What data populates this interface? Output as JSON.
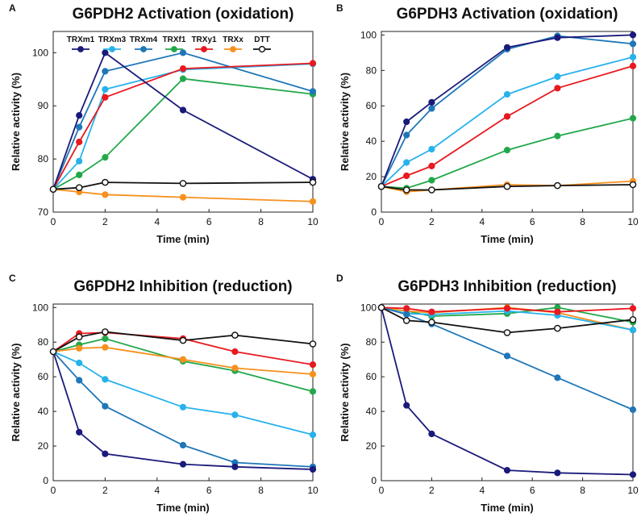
{
  "colors": {
    "TRXm1": "#1a1a7a",
    "TRXm3": "#27b2ec",
    "TRXm4": "#1f77b8",
    "TRXf1": "#22a84a",
    "TRXy1": "#e8191f",
    "TRXx": "#f7901e",
    "DTT": "#111111"
  },
  "legend": [
    "TRXm1",
    "TRXm3",
    "TRXm4",
    "TRXf1",
    "TRXy1",
    "TRXx",
    "DTT"
  ],
  "chart_data": [
    {
      "panel": "A",
      "type": "line",
      "title": "G6PDH2 Activation (oxidation)",
      "xlabel": "Time (min)",
      "ylabel": "Relative activity (%)",
      "xlim": [
        0,
        10
      ],
      "ylim": [
        70,
        104
      ],
      "xticks": [
        0,
        2,
        4,
        6,
        8,
        10
      ],
      "yticks": [
        70,
        80,
        90,
        100
      ],
      "series": [
        {
          "name": "TRXm1",
          "x": [
            0,
            1,
            2,
            5,
            10
          ],
          "values": [
            74.3,
            88.2,
            100,
            89.2,
            76.2
          ]
        },
        {
          "name": "TRXm3",
          "x": [
            0,
            1,
            2,
            5,
            10
          ],
          "values": [
            74.3,
            79.6,
            93.1,
            96.8,
            97.9
          ]
        },
        {
          "name": "TRXm4",
          "x": [
            0,
            1,
            2,
            5,
            10
          ],
          "values": [
            74.3,
            86.0,
            96.5,
            100,
            92.7
          ]
        },
        {
          "name": "TRXf1",
          "x": [
            0,
            1,
            2,
            5,
            10
          ],
          "values": [
            74.3,
            77.0,
            80.3,
            95.1,
            92.2
          ]
        },
        {
          "name": "TRXy1",
          "x": [
            0,
            1,
            2,
            5,
            10
          ],
          "values": [
            74.3,
            83.2,
            91.6,
            97.0,
            98.0
          ]
        },
        {
          "name": "TRXx",
          "x": [
            0,
            1,
            2,
            5,
            10
          ],
          "values": [
            74.3,
            73.8,
            73.3,
            72.8,
            72.0
          ]
        },
        {
          "name": "DTT",
          "x": [
            0,
            1,
            2,
            5,
            10
          ],
          "values": [
            74.3,
            74.6,
            75.6,
            75.4,
            75.6
          ]
        }
      ]
    },
    {
      "panel": "B",
      "type": "line",
      "title": "G6PDH3 Activation (oxidation)",
      "xlabel": "Time (min)",
      "ylabel": "Relative activity (%)",
      "xlim": [
        0,
        10
      ],
      "ylim": [
        0,
        102
      ],
      "xticks": [
        0,
        2,
        4,
        6,
        8,
        10
      ],
      "yticks": [
        0,
        20,
        40,
        60,
        80,
        100
      ],
      "series": [
        {
          "name": "TRXm1",
          "x": [
            0,
            1,
            2,
            5,
            7,
            10
          ],
          "values": [
            14.5,
            51,
            62,
            93,
            98.5,
            100
          ]
        },
        {
          "name": "TRXm3",
          "x": [
            0,
            1,
            2,
            5,
            7,
            10
          ],
          "values": [
            14.5,
            28,
            35.5,
            66.5,
            76.5,
            87.5
          ]
        },
        {
          "name": "TRXm4",
          "x": [
            0,
            1,
            2,
            5,
            7,
            10
          ],
          "values": [
            14.5,
            43.5,
            58.5,
            92,
            99.5,
            95
          ]
        },
        {
          "name": "TRXf1",
          "x": [
            0,
            1,
            2,
            5,
            7,
            10
          ],
          "values": [
            14.5,
            13.5,
            18,
            35,
            43,
            53
          ]
        },
        {
          "name": "TRXy1",
          "x": [
            0,
            1,
            2,
            5,
            7,
            10
          ],
          "values": [
            14.5,
            20.5,
            26,
            54,
            70,
            82.5
          ]
        },
        {
          "name": "TRXx",
          "x": [
            0,
            1,
            2,
            5,
            7,
            10
          ],
          "values": [
            14.5,
            11.5,
            12.5,
            15.5,
            15,
            17.5
          ]
        },
        {
          "name": "DTT",
          "x": [
            0,
            1,
            2,
            5,
            7,
            10
          ],
          "values": [
            14.5,
            12.5,
            12.5,
            14.5,
            15,
            15.5
          ]
        }
      ]
    },
    {
      "panel": "C",
      "type": "line",
      "title": "G6PDH2 Inhibition (reduction)",
      "xlabel": "Time (min)",
      "ylabel": "Relative activity (%)",
      "xlim": [
        0,
        10
      ],
      "ylim": [
        0,
        102
      ],
      "xticks": [
        0,
        2,
        4,
        6,
        8,
        10
      ],
      "yticks": [
        0,
        20,
        40,
        60,
        80,
        100
      ],
      "series": [
        {
          "name": "TRXm1",
          "x": [
            0,
            1,
            2,
            5,
            7,
            10
          ],
          "values": [
            74.5,
            28,
            15.5,
            9.5,
            8,
            6.5
          ]
        },
        {
          "name": "TRXm3",
          "x": [
            0,
            1,
            2,
            5,
            7,
            10
          ],
          "values": [
            74.5,
            68,
            58.5,
            42.5,
            38,
            26.5
          ]
        },
        {
          "name": "TRXm4",
          "x": [
            0,
            1,
            2,
            5,
            7,
            10
          ],
          "values": [
            74.5,
            58,
            43,
            20.5,
            10.5,
            8
          ]
        },
        {
          "name": "TRXf1",
          "x": [
            0,
            1,
            2,
            5,
            7,
            10
          ],
          "values": [
            74.5,
            78.5,
            82,
            69,
            63.5,
            51.5
          ]
        },
        {
          "name": "TRXy1",
          "x": [
            0,
            1,
            2,
            5,
            7,
            10
          ],
          "values": [
            74.5,
            85,
            85.5,
            82,
            74.5,
            67
          ]
        },
        {
          "name": "TRXx",
          "x": [
            0,
            1,
            2,
            5,
            7,
            10
          ],
          "values": [
            74.5,
            76.5,
            77,
            70,
            65,
            61.5
          ]
        },
        {
          "name": "DTT",
          "x": [
            0,
            1,
            2,
            5,
            7,
            10
          ],
          "values": [
            74.5,
            83,
            86,
            81,
            84,
            79
          ]
        }
      ]
    },
    {
      "panel": "D",
      "type": "line",
      "title": "G6PDH3 Inhibition (reduction)",
      "xlabel": "Time (min)",
      "ylabel": "Relative activity (%)",
      "xlim": [
        0,
        10
      ],
      "ylim": [
        0,
        102
      ],
      "xticks": [
        0,
        2,
        4,
        6,
        8,
        10
      ],
      "yticks": [
        0,
        20,
        40,
        60,
        80,
        100
      ],
      "series": [
        {
          "name": "TRXm1",
          "x": [
            0,
            1,
            2,
            5,
            7,
            10
          ],
          "values": [
            100,
            43.5,
            27,
            6,
            4.5,
            3.5
          ]
        },
        {
          "name": "TRXm3",
          "x": [
            0,
            1,
            2,
            5,
            7,
            10
          ],
          "values": [
            100,
            96.5,
            96,
            98,
            95.5,
            87
          ]
        },
        {
          "name": "TRXm4",
          "x": [
            0,
            1,
            2,
            5,
            7,
            10
          ],
          "values": [
            100,
            96,
            90.5,
            72,
            59.5,
            41
          ]
        },
        {
          "name": "TRXf1",
          "x": [
            0,
            1,
            2,
            5,
            7,
            10
          ],
          "values": [
            100,
            98,
            95,
            96.5,
            100,
            91.5
          ]
        },
        {
          "name": "TRXy1",
          "x": [
            0,
            1,
            2,
            5,
            7,
            10
          ],
          "values": [
            100,
            99.5,
            97.5,
            99.5,
            97.5,
            99.5
          ]
        },
        {
          "name": "TRXx",
          "x": [
            0,
            1,
            2,
            5,
            7,
            10
          ],
          "values": [
            100,
            98,
            97,
            100,
            97,
            87
          ]
        },
        {
          "name": "DTT",
          "x": [
            0,
            1,
            2,
            5,
            7,
            10
          ],
          "values": [
            100,
            92.5,
            91.5,
            85.5,
            88,
            93
          ]
        }
      ]
    }
  ]
}
